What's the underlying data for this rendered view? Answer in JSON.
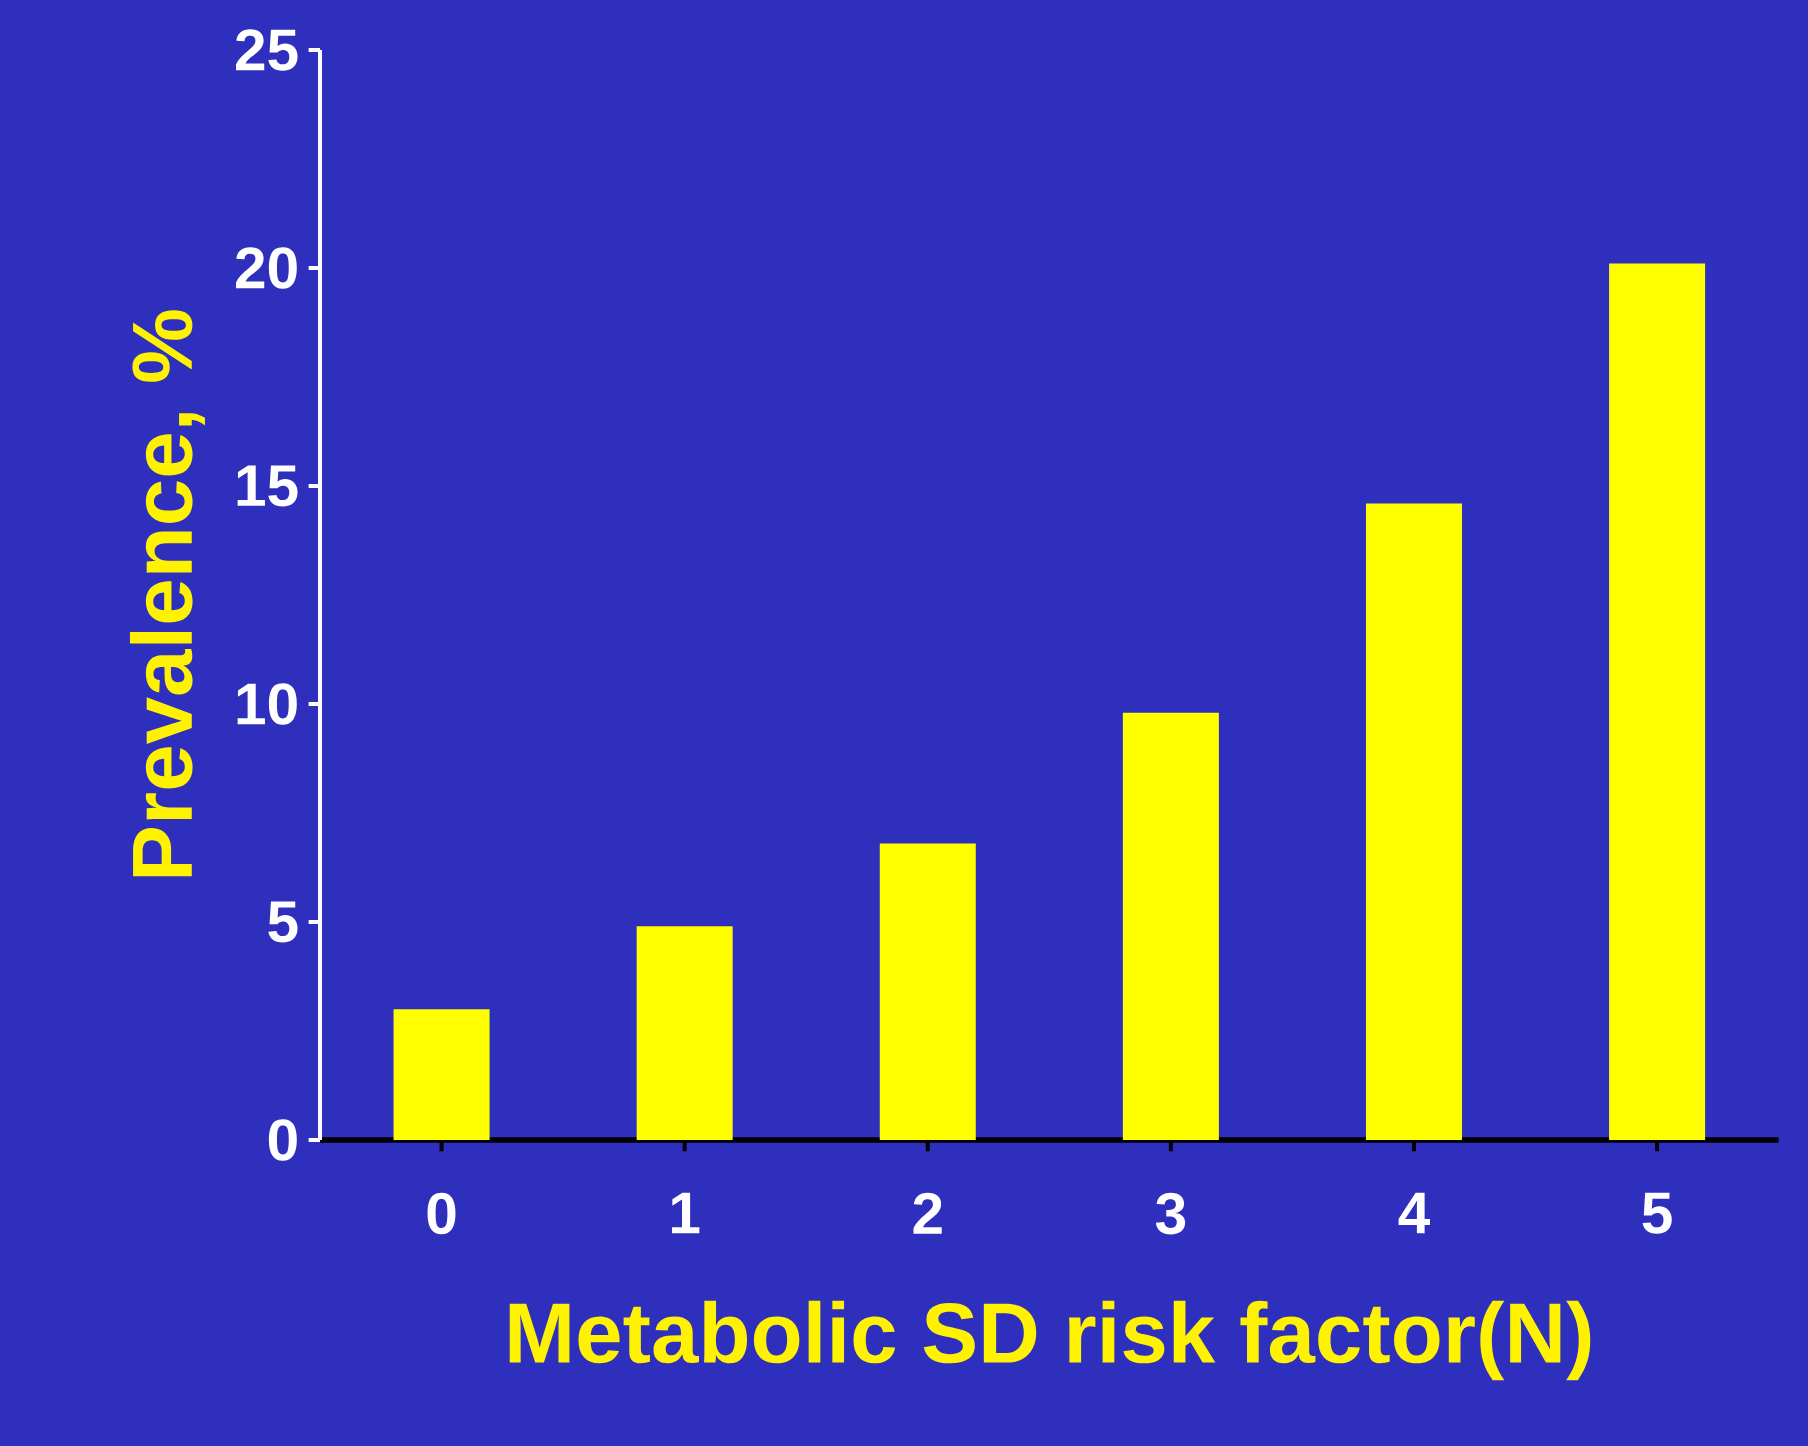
{
  "chart_data": {
    "type": "bar",
    "xlabel": "Metabolic SD risk factor(N)",
    "ylabel": "Prevalence, %",
    "categories": [
      "0",
      "1",
      "2",
      "3",
      "4",
      "5"
    ],
    "values": [
      3.0,
      4.9,
      6.8,
      9.8,
      14.6,
      20.1
    ],
    "color": "#ffff00",
    "ylim": [
      0,
      25
    ],
    "yticks": [
      0,
      5,
      10,
      15,
      20,
      25
    ]
  }
}
